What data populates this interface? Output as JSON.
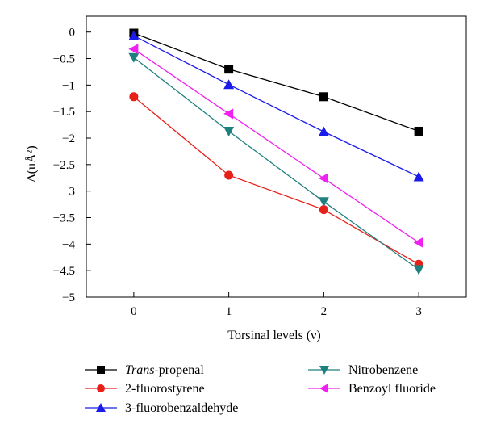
{
  "chart_data": {
    "type": "line",
    "xlabel": "Torsinal levels (ν)",
    "ylabel": "Δ(uÅ²)",
    "categories": [
      "0",
      "1",
      "2",
      "3"
    ],
    "x": [
      0,
      1,
      2,
      3
    ],
    "xlim": [
      -0.5,
      3.5
    ],
    "ylim": [
      -5,
      0.3
    ],
    "yticks": [
      0,
      -0.5,
      -1,
      -1.5,
      -2,
      -2.5,
      -3,
      -3.5,
      -4,
      -4.5,
      -5
    ],
    "ytick_labels": [
      "0",
      "−0.5",
      "−1",
      "−1.5",
      "−2",
      "−2.5",
      "−3",
      "−3.5",
      "−4",
      "−4.5",
      "−5"
    ],
    "grid": false,
    "legend_position": "bottom",
    "series": [
      {
        "name": "Trans-propenal",
        "name_italic": "Trans",
        "name_rest": "-propenal",
        "values": [
          -0.02,
          -0.7,
          -1.22,
          -1.87
        ],
        "color": "#000000",
        "marker": "square"
      },
      {
        "name": "2-fluorostyrene",
        "values": [
          -1.22,
          -2.7,
          -3.35,
          -4.38
        ],
        "color": "#e8201a",
        "marker": "circle"
      },
      {
        "name": "3-fluorobenzaldehyde",
        "values": [
          -0.07,
          -0.99,
          -1.88,
          -2.73
        ],
        "color": "#1a1aeb",
        "marker": "triangle-up"
      },
      {
        "name": "Nitrobenzene",
        "values": [
          -0.48,
          -1.87,
          -3.2,
          -4.48
        ],
        "color": "#1f8080",
        "marker": "triangle-down"
      },
      {
        "name": "Benzoyl fluoride",
        "values": [
          -0.32,
          -1.54,
          -2.76,
          -3.97
        ],
        "color": "#f020f0",
        "marker": "triangle-left"
      }
    ]
  }
}
